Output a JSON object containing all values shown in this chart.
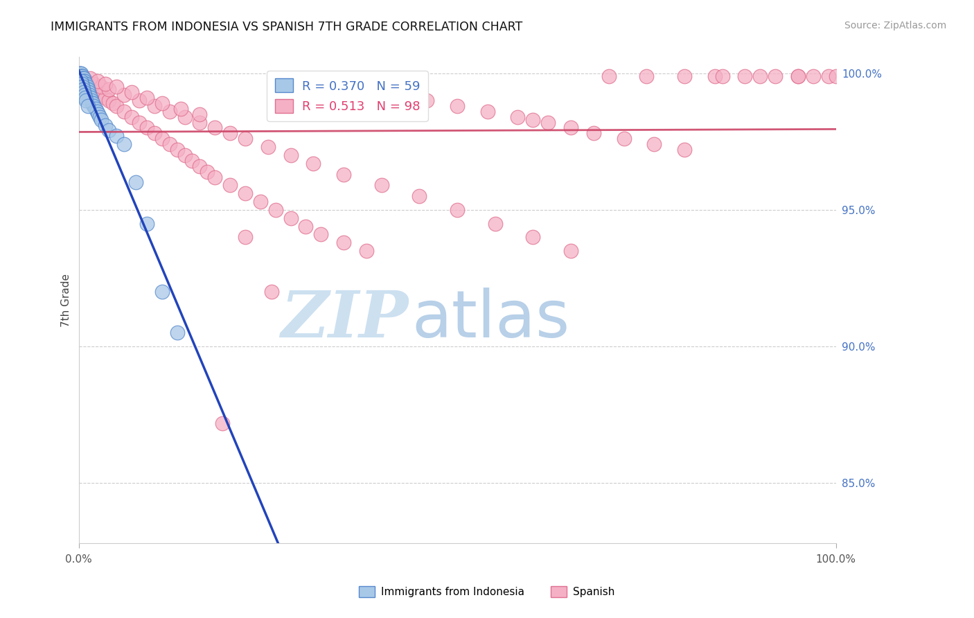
{
  "title": "IMMIGRANTS FROM INDONESIA VS SPANISH 7TH GRADE CORRELATION CHART",
  "source_text": "Source: ZipAtlas.com",
  "ylabel": "7th Grade",
  "x_min": 0.0,
  "x_max": 1.0,
  "y_min": 0.828,
  "y_max": 1.006,
  "y_ticks": [
    0.85,
    0.9,
    0.95,
    1.0
  ],
  "y_tick_labels": [
    "85.0%",
    "90.0%",
    "95.0%",
    "100.0%"
  ],
  "legend1_r": "R = 0.370",
  "legend1_n": "N = 59",
  "legend2_r": "R = 0.513",
  "legend2_n": "N = 98",
  "blue_fill": "#a8c8e8",
  "blue_edge": "#5588cc",
  "pink_fill": "#f5b0c5",
  "pink_edge": "#e07090",
  "trend_blue": "#2244bb",
  "trend_pink": "#cc4466",
  "wm_zip_color": "#cce0f0",
  "wm_atlas_color": "#b8d0e8",
  "tick_color": "#4472c4",
  "title_color": "#111111",
  "source_color": "#999999",
  "blue_x": [
    0.001,
    0.001,
    0.002,
    0.002,
    0.002,
    0.003,
    0.003,
    0.003,
    0.004,
    0.004,
    0.004,
    0.005,
    0.005,
    0.005,
    0.006,
    0.006,
    0.006,
    0.007,
    0.007,
    0.007,
    0.008,
    0.008,
    0.009,
    0.009,
    0.01,
    0.01,
    0.011,
    0.011,
    0.012,
    0.013,
    0.014,
    0.015,
    0.016,
    0.017,
    0.018,
    0.019,
    0.02,
    0.022,
    0.024,
    0.026,
    0.028,
    0.03,
    0.035,
    0.04,
    0.05,
    0.06,
    0.075,
    0.09,
    0.11,
    0.13,
    0.003,
    0.004,
    0.005,
    0.006,
    0.007,
    0.008,
    0.009,
    0.01,
    0.012
  ],
  "blue_y": [
    1.0,
    0.999,
    1.0,
    0.999,
    0.998,
    1.0,
    0.999,
    0.998,
    0.999,
    0.998,
    0.997,
    0.999,
    0.998,
    0.997,
    0.998,
    0.997,
    0.996,
    0.998,
    0.997,
    0.996,
    0.997,
    0.996,
    0.996,
    0.995,
    0.996,
    0.995,
    0.995,
    0.994,
    0.994,
    0.993,
    0.992,
    0.991,
    0.991,
    0.99,
    0.989,
    0.989,
    0.988,
    0.987,
    0.986,
    0.985,
    0.984,
    0.983,
    0.981,
    0.979,
    0.977,
    0.974,
    0.96,
    0.945,
    0.92,
    0.905,
    0.997,
    0.996,
    0.995,
    0.994,
    0.993,
    0.992,
    0.991,
    0.99,
    0.988
  ],
  "pink_x": [
    0.003,
    0.005,
    0.007,
    0.009,
    0.01,
    0.012,
    0.014,
    0.016,
    0.018,
    0.02,
    0.025,
    0.03,
    0.035,
    0.04,
    0.045,
    0.05,
    0.06,
    0.07,
    0.08,
    0.09,
    0.1,
    0.11,
    0.12,
    0.13,
    0.14,
    0.15,
    0.16,
    0.17,
    0.18,
    0.2,
    0.22,
    0.24,
    0.26,
    0.28,
    0.3,
    0.32,
    0.35,
    0.38,
    0.42,
    0.46,
    0.5,
    0.54,
    0.58,
    0.6,
    0.62,
    0.65,
    0.68,
    0.72,
    0.76,
    0.8,
    0.84,
    0.88,
    0.92,
    0.95,
    0.97,
    0.99,
    1.0,
    0.01,
    0.02,
    0.03,
    0.04,
    0.06,
    0.08,
    0.1,
    0.12,
    0.14,
    0.16,
    0.18,
    0.2,
    0.22,
    0.25,
    0.28,
    0.31,
    0.35,
    0.4,
    0.45,
    0.5,
    0.55,
    0.6,
    0.65,
    0.7,
    0.75,
    0.8,
    0.85,
    0.9,
    0.95,
    0.015,
    0.025,
    0.035,
    0.05,
    0.07,
    0.09,
    0.11,
    0.135,
    0.16,
    0.19,
    0.22,
    0.255
  ],
  "pink_y": [
    0.999,
    0.998,
    0.998,
    0.997,
    0.997,
    0.996,
    0.996,
    0.995,
    0.995,
    0.994,
    0.993,
    0.992,
    0.991,
    0.99,
    0.989,
    0.988,
    0.986,
    0.984,
    0.982,
    0.98,
    0.978,
    0.976,
    0.974,
    0.972,
    0.97,
    0.968,
    0.966,
    0.964,
    0.962,
    0.959,
    0.956,
    0.953,
    0.95,
    0.947,
    0.944,
    0.941,
    0.938,
    0.935,
    0.992,
    0.99,
    0.988,
    0.986,
    0.984,
    0.983,
    0.982,
    0.98,
    0.978,
    0.976,
    0.974,
    0.972,
    0.999,
    0.999,
    0.999,
    0.999,
    0.999,
    0.999,
    0.999,
    0.997,
    0.996,
    0.995,
    0.994,
    0.992,
    0.99,
    0.988,
    0.986,
    0.984,
    0.982,
    0.98,
    0.978,
    0.976,
    0.973,
    0.97,
    0.967,
    0.963,
    0.959,
    0.955,
    0.95,
    0.945,
    0.94,
    0.935,
    0.999,
    0.999,
    0.999,
    0.999,
    0.999,
    0.999,
    0.998,
    0.997,
    0.996,
    0.995,
    0.993,
    0.991,
    0.989,
    0.987,
    0.985,
    0.872,
    0.94,
    0.92
  ]
}
